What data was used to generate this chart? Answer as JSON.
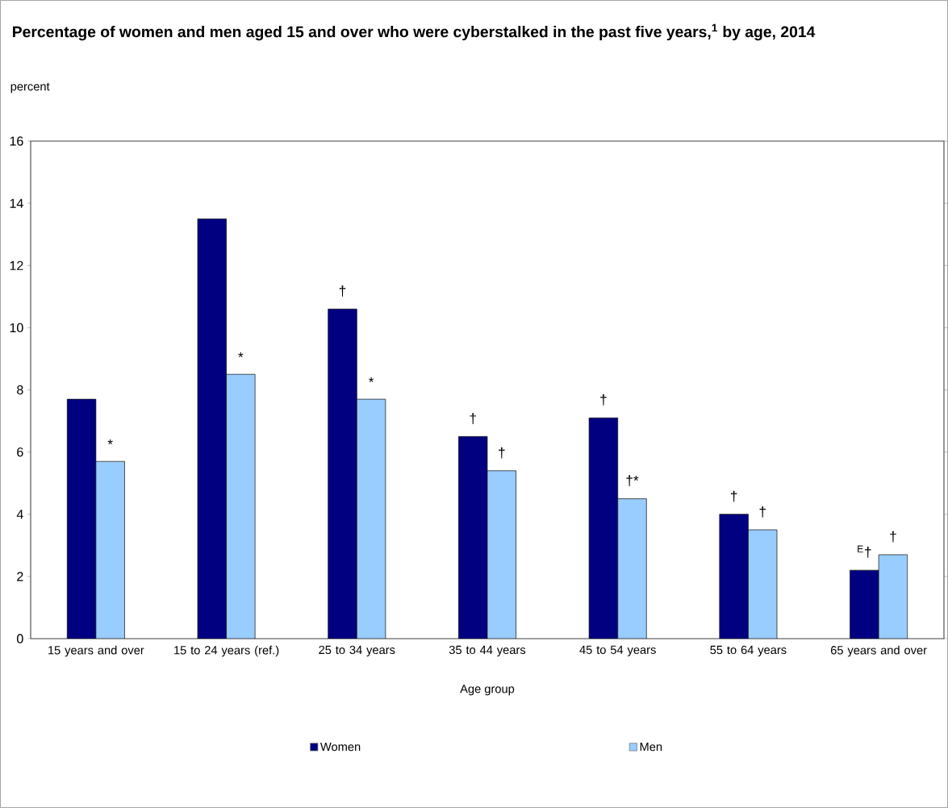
{
  "chart_data": {
    "type": "bar",
    "title": "Percentage of women and men aged 15 and over who were cyberstalked in the past five years,$^{1}$ by age, 2014",
    "ylabel": "percent",
    "xlabel": "Age group",
    "categories": [
      "15 years and over",
      "15 to 24 years (ref.)",
      "25 to 34 years",
      "35 to 44 years",
      "45 to 54 years",
      "55 to 64 years",
      "65 years and over"
    ],
    "series": [
      {
        "name": "Women",
        "color": "#000080",
        "values": [
          7.7,
          13.5,
          10.6,
          6.5,
          7.1,
          4.0,
          2.2
        ]
      },
      {
        "name": "Men",
        "color": "#99ccff",
        "values": [
          5.7,
          8.5,
          7.7,
          5.4,
          4.5,
          3.5,
          2.7
        ]
      }
    ],
    "ylim": [
      0,
      16
    ],
    "yticks": [
      0,
      2,
      4,
      6,
      8,
      10,
      12,
      14,
      16
    ],
    "legend": "bottom",
    "annotations": [
      {
        "text": "*",
        "x": "15 years and over",
        "y": 5.7
      },
      {
        "text": "*",
        "x": "15 to 24 years (ref.)",
        "y": 8.5
      },
      {
        "text": "†",
        "x": "25 to 34 years",
        "y": 10.6
      },
      {
        "text": "*",
        "x": "25 to 34 years",
        "y": 7.7
      },
      {
        "text": "†",
        "x": "35 to 44 years",
        "y": 6.5
      },
      {
        "text": "†",
        "x": "35 to 44 years",
        "y": 5.4
      },
      {
        "text": "†",
        "x": "45 to 54 years",
        "y": 7.1
      },
      {
        "text": "†*",
        "x": "45 to 54 years",
        "y": 4.5
      },
      {
        "text": "†",
        "x": "55 to 64 years",
        "y": 4.0
      },
      {
        "text": "†",
        "x": "55 to 64 years",
        "y": 3.5
      },
      {
        "text": "$^{E}$†",
        "x": "65 years and over",
        "y": 2.2
      },
      {
        "text": "†",
        "x": "65 years and over",
        "y": 2.7
      }
    ]
  }
}
